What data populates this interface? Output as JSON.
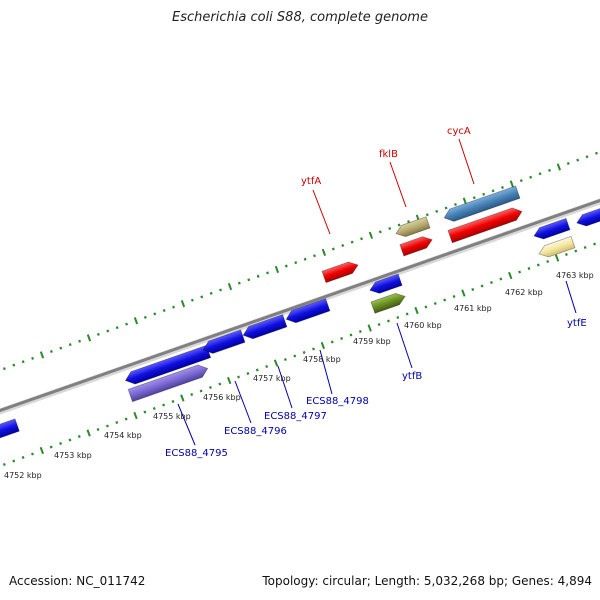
{
  "title": "Escherichia coli S88, complete genome",
  "footer": {
    "accession": "Accession: NC_011742",
    "stats": "Topology: circular; Length: 5,032,268 bp; Genes: 4,894"
  },
  "colors": {
    "backbone": "#888888",
    "tick": "#2a8a2a",
    "label_red": "#cc0000",
    "label_blue": "#0000aa"
  },
  "scale_labels": [
    "4752 kbp",
    "4753 kbp",
    "4754 kbp",
    "4755 kbp",
    "4756 kbp",
    "4757 kbp",
    "4758 kbp",
    "4759 kbp",
    "4760 kbp",
    "4761 kbp",
    "4762 kbp",
    "4763 kbp"
  ],
  "gene_labels": {
    "ytfA": "ytfA",
    "fklB": "fklB",
    "cycA": "cycA",
    "ytfB": "ytfB",
    "ytfE": "ytfE",
    "ecs4795": "ECS88_4795",
    "ecs4796": "ECS88_4796",
    "ecs4797": "ECS88_4797",
    "ecs4798": "ECS88_4798"
  }
}
